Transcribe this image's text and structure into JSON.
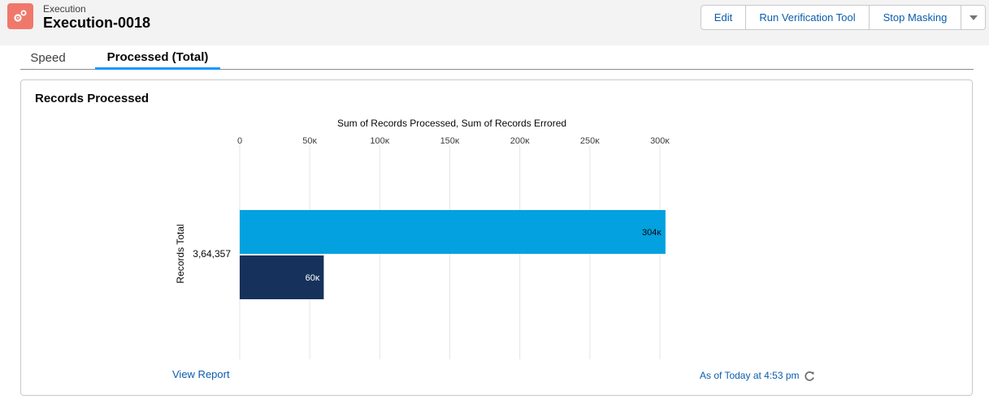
{
  "header": {
    "object_type": "Execution",
    "record_name": "Execution-0018",
    "icon": "gears-icon",
    "icon_color": "#f0786b"
  },
  "actions": {
    "edit_label": "Edit",
    "verify_label": "Run Verification Tool",
    "stop_label": "Stop Masking",
    "more_icon": "chevron-down-icon"
  },
  "tabs": [
    {
      "label": "Speed",
      "active": false
    },
    {
      "label": "Processed (Total)",
      "active": true
    }
  ],
  "card": {
    "title": "Records Processed",
    "view_report_label": "View Report",
    "as_of_label": "As of Today at 4:53 pm",
    "refresh_icon": "refresh-icon"
  },
  "chart_data": {
    "type": "bar",
    "orientation": "horizontal",
    "title": "Sum of Records Processed, Sum of Records Errored",
    "ylabel": "Records Total",
    "categories": [
      "3,64,357"
    ],
    "xlim": [
      0,
      300000
    ],
    "xticks": [
      0,
      50000,
      100000,
      150000,
      200000,
      250000,
      300000
    ],
    "xtick_labels": [
      "0",
      "50ᴋ",
      "100ᴋ",
      "150ᴋ",
      "200ᴋ",
      "250ᴋ",
      "300ᴋ"
    ],
    "series": [
      {
        "values": [
          304000
        ],
        "label_text": "304ᴋ",
        "color": "#03a1e0"
      },
      {
        "values": [
          60000
        ],
        "label_text": "60ᴋ",
        "color": "#16325c"
      }
    ],
    "grid": true
  }
}
